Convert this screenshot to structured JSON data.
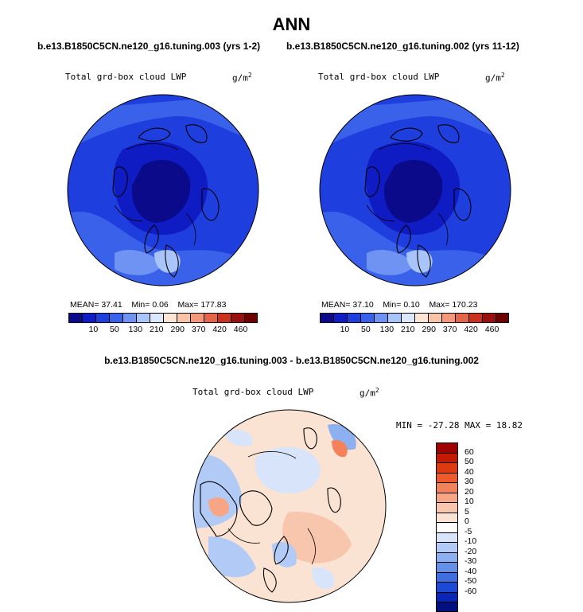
{
  "page_title": "ANN",
  "panels": [
    {
      "case_label": "b.e13.B1850C5CN.ne120_g16.tuning.003 (yrs 1-2)",
      "variable": "Total grd-box cloud LWP",
      "units": "g/m",
      "units_exp": "2",
      "stats": {
        "mean_label": "MEAN=",
        "mean": "37.41",
        "min_label": "Min=",
        "min": "0.06",
        "max_label": "Max=",
        "max": "177.83"
      }
    },
    {
      "case_label": "b.e13.B1850C5CN.ne120_g16.tuning.002 (yrs 11-12)",
      "variable": "Total grd-box cloud LWP",
      "units": "g/m",
      "units_exp": "2",
      "stats": {
        "mean_label": "MEAN=",
        "mean": "37.10",
        "min_label": "Min=",
        "min": "0.10",
        "max_label": "Max=",
        "max": "170.23"
      }
    }
  ],
  "diff_panel": {
    "title": "b.e13.B1850C5CN.ne120_g16.tuning.003 - b.e13.B1850C5CN.ne120_g16.tuning.002",
    "variable": "Total grd-box cloud LWP",
    "units": "g/m",
    "units_exp": "2",
    "minmax": "MIN = -27.28 MAX =  18.82"
  },
  "chart_data": [
    {
      "type": "heatmap",
      "projection": "north-polar-stereographic",
      "title": "b.e13.B1850C5CN.ne120_g16.tuning.003 (yrs 1-2)",
      "variable": "Total grd-box cloud LWP",
      "units": "g/m^2",
      "mean": 37.41,
      "min": 0.06,
      "max": 177.83,
      "levels": [
        "10",
        "50",
        "130",
        "210",
        "290",
        "370",
        "420",
        "460"
      ],
      "colors": [
        "#0a0a8a",
        "#0f1cc4",
        "#1f3ede",
        "#3a61ea",
        "#6f93f2",
        "#a8c4f8",
        "#dbe8fc",
        "#fde5d6",
        "#f9c3a8",
        "#f3987a",
        "#e5654a",
        "#c9321f",
        "#9a1010",
        "#6e0000"
      ]
    },
    {
      "type": "heatmap",
      "projection": "north-polar-stereographic",
      "title": "b.e13.B1850C5CN.ne120_g16.tuning.002 (yrs 11-12)",
      "variable": "Total grd-box cloud LWP",
      "units": "g/m^2",
      "mean": 37.1,
      "min": 0.1,
      "max": 170.23,
      "levels": [
        "10",
        "50",
        "130",
        "210",
        "290",
        "370",
        "420",
        "460"
      ],
      "colors": [
        "#0a0a8a",
        "#0f1cc4",
        "#1f3ede",
        "#3a61ea",
        "#6f93f2",
        "#a8c4f8",
        "#dbe8fc",
        "#fde5d6",
        "#f9c3a8",
        "#f3987a",
        "#e5654a",
        "#c9321f",
        "#9a1010",
        "#6e0000"
      ]
    },
    {
      "type": "heatmap",
      "projection": "north-polar-stereographic",
      "title": "b.e13.B1850C5CN.ne120_g16.tuning.003 - b.e13.B1850C5CN.ne120_g16.tuning.002",
      "variable": "Total grd-box cloud LWP",
      "units": "g/m^2",
      "min": -27.28,
      "max": 18.82,
      "levels": [
        "60",
        "50",
        "40",
        "30",
        "20",
        "10",
        "5",
        "0",
        "-5",
        "-10",
        "-20",
        "-30",
        "-40",
        "-50",
        "-60"
      ],
      "colors": [
        "#a00000",
        "#c41a00",
        "#dc3a10",
        "#ee5a2c",
        "#f3815a",
        "#f6a585",
        "#f8c5ad",
        "#fbe3d4",
        "#ffffff",
        "#d8e4fa",
        "#b2cbf6",
        "#8cb0f0",
        "#6590e8",
        "#3e6ee0",
        "#1c4ad4",
        "#0a26b4",
        "#001080"
      ]
    }
  ]
}
